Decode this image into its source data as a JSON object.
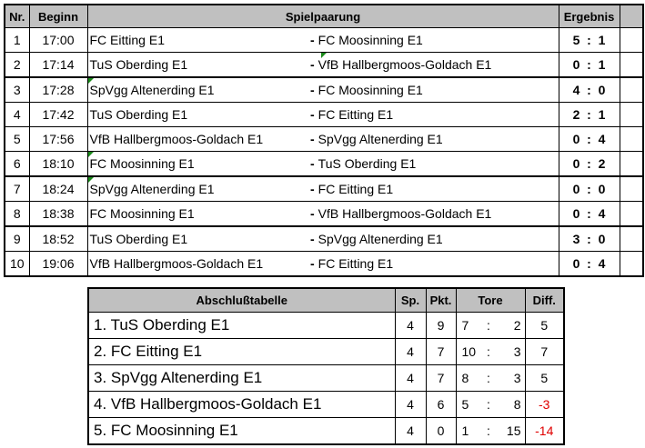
{
  "games": {
    "headers": {
      "nr": "Nr.",
      "beginn": "Beginn",
      "spielpaarung": "Spielpaarung",
      "ergebnis": "Ergebnis"
    },
    "dash": "-",
    "sep": ":",
    "rows": [
      {
        "nr": "1",
        "time": "17:00",
        "home": "FC Eitting E1",
        "away": "FC Moosinning E1",
        "h": "5",
        "a": "1"
      },
      {
        "nr": "2",
        "time": "17:14",
        "home": "TuS Oberding E1",
        "away": "VfB Hallbergmoos-Goldach E1",
        "h": "0",
        "a": "1"
      },
      {
        "nr": "3",
        "time": "17:28",
        "home": "SpVgg Altenerding E1",
        "away": "FC Moosinning E1",
        "h": "4",
        "a": "0"
      },
      {
        "nr": "4",
        "time": "17:42",
        "home": "TuS Oberding E1",
        "away": "FC Eitting E1",
        "h": "2",
        "a": "1"
      },
      {
        "nr": "5",
        "time": "17:56",
        "home": "VfB Hallbergmoos-Goldach E1",
        "away": "SpVgg Altenerding E1",
        "h": "0",
        "a": "4"
      },
      {
        "nr": "6",
        "time": "18:10",
        "home": "FC Moosinning E1",
        "away": "TuS Oberding E1",
        "h": "0",
        "a": "2"
      },
      {
        "nr": "7",
        "time": "18:24",
        "home": "SpVgg Altenerding E1",
        "away": "FC Eitting E1",
        "h": "0",
        "a": "0"
      },
      {
        "nr": "8",
        "time": "18:38",
        "home": "FC Moosinning E1",
        "away": "VfB Hallbergmoos-Goldach E1",
        "h": "0",
        "a": "4"
      },
      {
        "nr": "9",
        "time": "18:52",
        "home": "TuS Oberding E1",
        "away": "SpVgg Altenerding E1",
        "h": "3",
        "a": "0"
      },
      {
        "nr": "10",
        "time": "19:06",
        "home": "VfB Hallbergmoos-Goldach E1",
        "away": "FC Eitting E1",
        "h": "0",
        "a": "4"
      }
    ]
  },
  "standings": {
    "headers": {
      "title": "Abschlußtabelle",
      "sp": "Sp.",
      "pkt": "Pkt.",
      "tore": "Tore",
      "diff": "Diff."
    },
    "negative_color": "#e00000",
    "rows": [
      {
        "team": "1.  TuS Oberding E1",
        "sp": "4",
        "pkt": "9",
        "gf": "7",
        "ga": "2",
        "diff": "5"
      },
      {
        "team": "2.  FC Eitting E1",
        "sp": "4",
        "pkt": "7",
        "gf": "10",
        "ga": "3",
        "diff": "7"
      },
      {
        "team": "3.  SpVgg Altenerding E1",
        "sp": "4",
        "pkt": "7",
        "gf": "8",
        "ga": "3",
        "diff": "5"
      },
      {
        "team": "4.  VfB Hallbergmoos-Goldach E1",
        "sp": "4",
        "pkt": "6",
        "gf": "5",
        "ga": "8",
        "diff": "-3"
      },
      {
        "team": "5.  FC Moosinning E1",
        "sp": "4",
        "pkt": "0",
        "gf": "1",
        "ga": "15",
        "diff": "-14"
      }
    ]
  }
}
